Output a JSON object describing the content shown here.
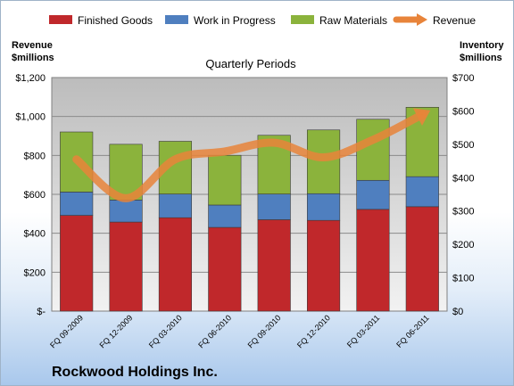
{
  "chart_data": {
    "type": "bar",
    "stacked": true,
    "title": "Quarterly Periods",
    "company": "Rockwood Holdings Inc.",
    "y_left_label": [
      "Revenue",
      "$millions"
    ],
    "y_right_label": [
      "Inventory",
      "$millions"
    ],
    "categories": [
      "FQ 09-2009",
      "FQ 12-2009",
      "FQ 03-2010",
      "FQ 06-2010",
      "FQ 09-2010",
      "FQ 12-2010",
      "FQ 03-2011",
      "FQ 06-2011"
    ],
    "series": [
      {
        "name": "Finished Goods",
        "axis": "right",
        "color": "#c0282b",
        "values": [
          287,
          267,
          280,
          251,
          274,
          272,
          305,
          313
        ]
      },
      {
        "name": "Work in Progress",
        "axis": "right",
        "color": "#4f7fbf",
        "values": [
          70,
          66,
          71,
          67,
          77,
          80,
          87,
          90
        ]
      },
      {
        "name": "Raw Materials",
        "axis": "right",
        "color": "#8bb33c",
        "values": [
          180,
          167,
          158,
          149,
          176,
          191,
          183,
          208
        ]
      }
    ],
    "line_series": {
      "name": "Revenue",
      "axis": "left",
      "color": "#e8843a",
      "values": [
        780,
        580,
        780,
        820,
        865,
        790,
        880,
        1010
      ]
    },
    "y_left_ticks": [
      "$-",
      "$200",
      "$400",
      "$600",
      "$800",
      "$1,000",
      "$1,200"
    ],
    "y_right_ticks": [
      "$0",
      "$100",
      "$200",
      "$300",
      "$400",
      "$500",
      "$600",
      "$700"
    ],
    "y_left_range": [
      0,
      1200
    ],
    "y_right_range": [
      0,
      700
    ],
    "grid": true,
    "legend": "top"
  }
}
